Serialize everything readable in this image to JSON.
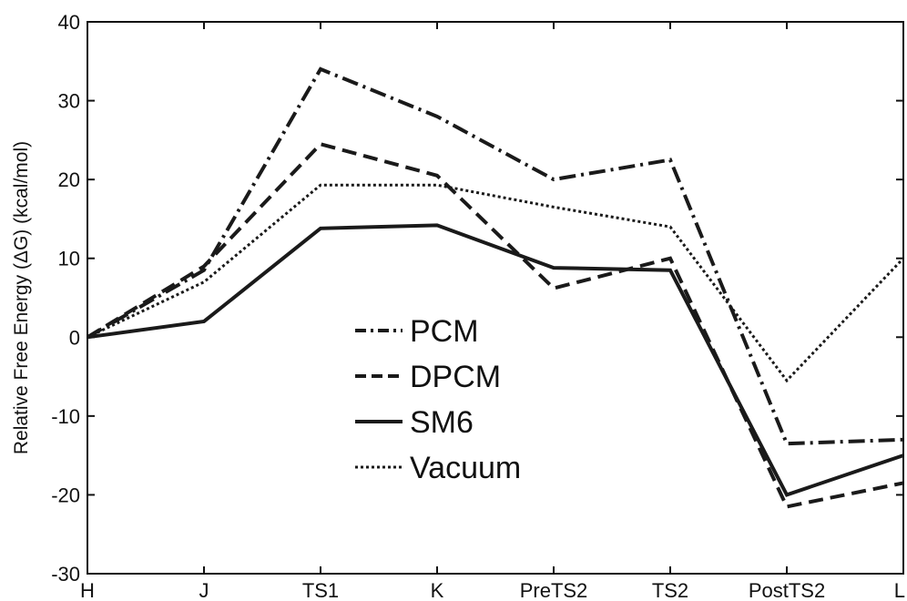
{
  "chart_data": {
    "type": "line",
    "categories": [
      "H",
      "J",
      "TS1",
      "K",
      "PreTS2",
      "TS2",
      "PostTS2",
      "L"
    ],
    "series": [
      {
        "name": "PCM",
        "values": [
          0,
          8.5,
          34,
          28,
          20,
          22.5,
          -13.5,
          -13
        ],
        "style": "dashdot"
      },
      {
        "name": "DPCM",
        "values": [
          0,
          9,
          24.5,
          20.5,
          6.2,
          10,
          -21.5,
          -18.5
        ],
        "style": "dashed"
      },
      {
        "name": "SM6",
        "values": [
          0,
          2,
          13.8,
          14.2,
          8.8,
          8.5,
          -20,
          -15
        ],
        "style": "solid"
      },
      {
        "name": "Vacuum",
        "values": [
          0,
          7,
          19.3,
          19.3,
          16.5,
          14,
          -5.5,
          10
        ],
        "style": "dotted"
      }
    ],
    "ylabel": "Relative Free Energy (ΔG) (kcal/mol)",
    "xlabel": "",
    "title": "",
    "ylim": [
      -30,
      40
    ],
    "yticks": [
      -30,
      -20,
      -10,
      0,
      10,
      20,
      30,
      40
    ],
    "grid": false,
    "legend_position": "center"
  }
}
